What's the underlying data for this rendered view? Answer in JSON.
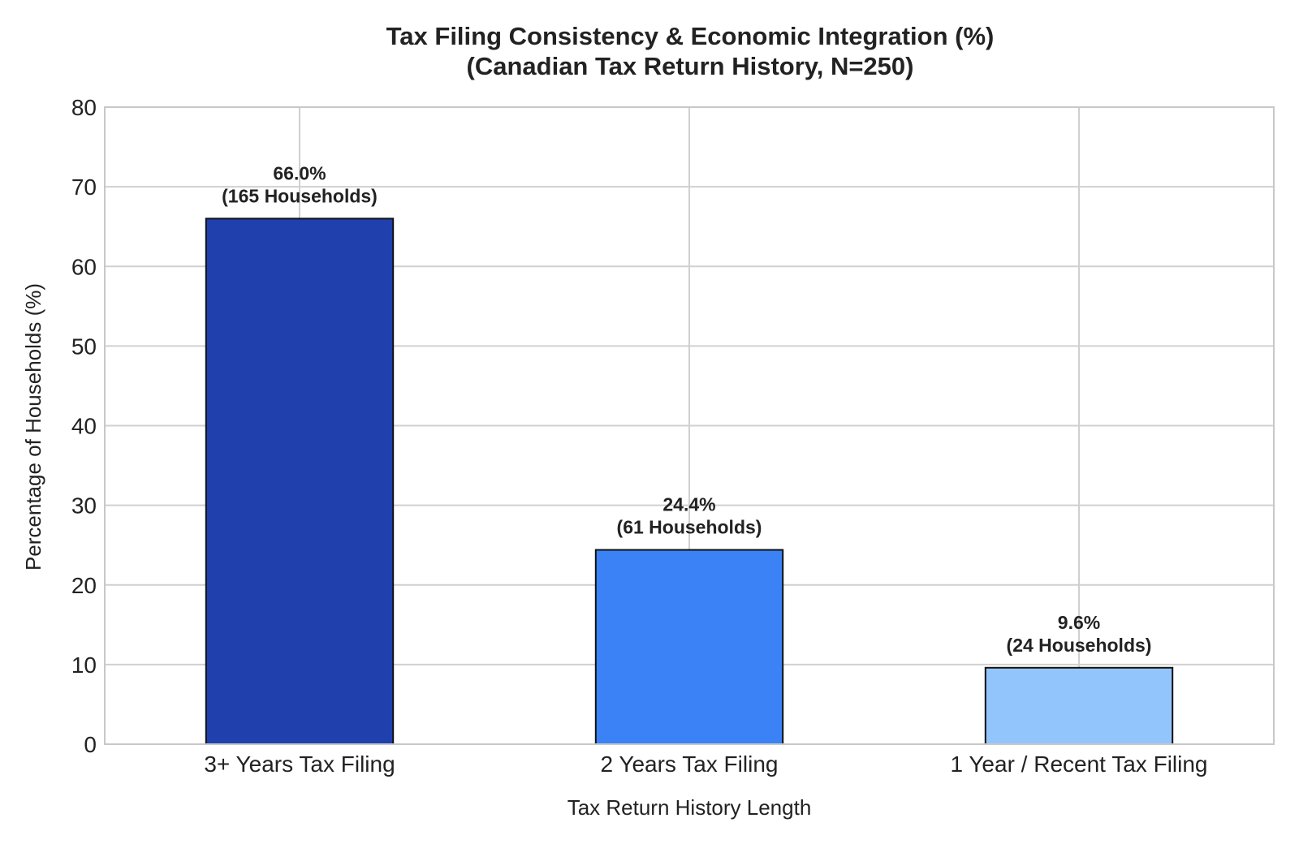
{
  "chart_data": {
    "type": "bar",
    "title": "Tax Filing Consistency & Economic Integration (%)",
    "subtitle": "(Canadian Tax Return History, N=250)",
    "xlabel": "Tax Return History Length",
    "ylabel": "Percentage of Households (%)",
    "categories": [
      "3+ Years Tax Filing",
      "2 Years Tax Filing",
      "1 Year / Recent Tax Filing"
    ],
    "values": [
      66.0,
      24.4,
      9.6
    ],
    "value_labels": [
      "66.0%",
      "24.4%",
      "9.6%"
    ],
    "count_labels": [
      "(165 Households)",
      "(61 Households)",
      "(24 Households)"
    ],
    "colors": [
      "#1f40ad",
      "#3b82f6",
      "#93c5fd"
    ],
    "ylim": [
      0,
      80
    ],
    "yticks": [
      0,
      10,
      20,
      30,
      40,
      50,
      60,
      70,
      80
    ],
    "grid": true,
    "legend": "none"
  }
}
